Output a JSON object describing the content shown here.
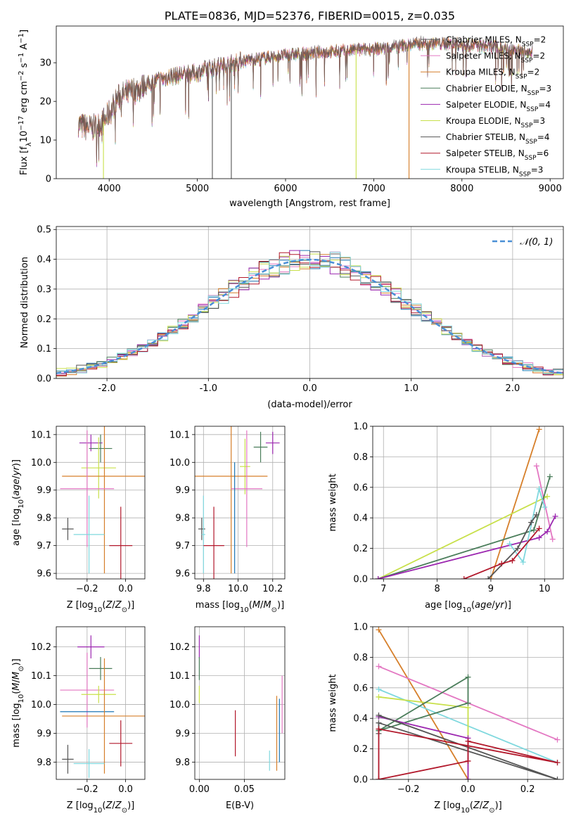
{
  "colors": {
    "chab_miles": "#1f77b4",
    "salp_miles": "#e377c2",
    "krou_miles": "#d67f2a",
    "chab_elodie": "#4a7d5a",
    "salp_elodie": "#9c27b0",
    "krou_elodie": "#c8e04a",
    "chab_stelib": "#555555",
    "salp_stelib": "#b2182b",
    "krou_stelib": "#7fd8de",
    "gaussian": "#4a8fd6",
    "grid": "#b0b0b0"
  },
  "chart_data": [
    {
      "id": "spectrum",
      "type": "line",
      "title": "PLATE=0836, MJD=52376, FIBERID=0015, z=0.035",
      "xlabel": "wavelength [Angstrom, rest frame]",
      "ylabel": "Flux [fλ10⁻¹⁷ erg cm⁻² s⁻¹ A⁻¹]",
      "xlim": [
        3400,
        9150
      ],
      "ylim": [
        0,
        39.5
      ],
      "xticks": [
        4000,
        5000,
        6000,
        7000,
        8000,
        9000
      ],
      "yticks": [
        0,
        10,
        20,
        30
      ],
      "legend_position": "right",
      "legend": [
        {
          "label": "Chabrier MILES, N",
          "sub": "SSP",
          "suffix": "=2",
          "color_key": "chab_stelib"
        },
        {
          "label": "Salpeter MILES, N",
          "sub": "SSP",
          "suffix": "=2",
          "color_key": "salp_miles"
        },
        {
          "label": "Kroupa MILES, N",
          "sub": "SSP",
          "suffix": "=2",
          "color_key": "krou_miles"
        },
        {
          "label": "Chabrier ELODIE, N",
          "sub": "SSP",
          "suffix": "=3",
          "color_key": "chab_elodie"
        },
        {
          "label": "Salpeter ELODIE, N",
          "sub": "SSP",
          "suffix": "=4",
          "color_key": "salp_elodie"
        },
        {
          "label": "Kroupa ELODIE, N",
          "sub": "SSP",
          "suffix": "=3",
          "color_key": "krou_elodie"
        },
        {
          "label": "Chabrier STELIB, N",
          "sub": "SSP",
          "suffix": "=4",
          "color_key": "chab_stelib"
        },
        {
          "label": "Salpeter STELIB, N",
          "sub": "SSP",
          "suffix": "=6",
          "color_key": "salp_stelib"
        },
        {
          "label": "Kroupa STELIB, N",
          "sub": "SSP",
          "suffix": "=3",
          "color_key": "krou_stelib"
        }
      ],
      "continuum": [
        [
          3650,
          14
        ],
        [
          3800,
          13
        ],
        [
          3950,
          15
        ],
        [
          4100,
          21
        ],
        [
          4300,
          23
        ],
        [
          4500,
          25
        ],
        [
          4700,
          26.5
        ],
        [
          5000,
          27.5
        ],
        [
          5200,
          29
        ],
        [
          5500,
          30.5
        ],
        [
          5800,
          31.5
        ],
        [
          6000,
          32
        ],
        [
          6300,
          32.5
        ],
        [
          6600,
          33
        ],
        [
          6900,
          33.5
        ],
        [
          7200,
          34
        ],
        [
          7500,
          35
        ],
        [
          7800,
          35
        ],
        [
          8100,
          34.5
        ],
        [
          8400,
          34
        ],
        [
          8700,
          33
        ],
        [
          8800,
          33
        ]
      ],
      "deep_drops": [
        [
          3935,
          0
        ],
        [
          5170,
          0
        ],
        [
          5385,
          0
        ],
        [
          6800,
          0
        ],
        [
          7400,
          0
        ]
      ]
    },
    {
      "id": "residuals",
      "type": "line",
      "xlabel": "(data-model)/error",
      "ylabel": "Normed distribution",
      "xlim": [
        -2.5,
        2.5
      ],
      "ylim": [
        0,
        0.51
      ],
      "xticks": [
        -2,
        -1,
        0,
        1,
        2
      ],
      "yticks": [
        0.0,
        0.1,
        0.2,
        0.3,
        0.4,
        0.5
      ],
      "legend_position": "top-right",
      "legend": [
        {
          "label": "𝒩(0, 1)",
          "color_key": "gaussian"
        }
      ],
      "bin_width": 0.1
    },
    {
      "id": "age_vs_Z",
      "type": "scatter",
      "xlabel": "Z [log10(Z/Z⊙)]",
      "ylabel": "age  [log10(age/yr)]",
      "xlim": [
        -0.36,
        0.1
      ],
      "ylim": [
        9.58,
        10.13
      ],
      "xticks": [
        -0.2,
        0.0
      ],
      "yticks": [
        9.6,
        9.7,
        9.8,
        9.9,
        10.0,
        10.1
      ],
      "points": [
        {
          "color_key": "salp_elodie",
          "x": -0.18,
          "y": 10.07,
          "xerr": 0.06,
          "yerr": 0.03
        },
        {
          "color_key": "chab_elodie",
          "x": -0.13,
          "y": 10.05,
          "xerr": 0.06,
          "yerr": 0.05
        },
        {
          "color_key": "krou_elodie",
          "x": -0.14,
          "y": 9.98,
          "xerr": 0.09,
          "yerr": 0.11
        },
        {
          "color_key": "krou_miles",
          "x": -0.11,
          "y": 9.95,
          "xerr": 0.22,
          "yerr": 0.35
        },
        {
          "color_key": "salp_miles",
          "x": -0.2,
          "y": 9.905,
          "xerr": 0.14,
          "yerr": 0.21
        },
        {
          "color_key": "krou_stelib",
          "x": -0.19,
          "y": 9.74,
          "xerr": 0.08,
          "yerr": 0.14
        },
        {
          "color_key": "chab_stelib",
          "x": -0.3,
          "y": 9.76,
          "xerr": 0.03,
          "yerr": 0.04
        },
        {
          "color_key": "salp_stelib",
          "x": -0.025,
          "y": 9.7,
          "xerr": 0.06,
          "yerr": 0.14
        }
      ]
    },
    {
      "id": "age_vs_mass",
      "type": "scatter",
      "xlabel": "mass [log10(M/M⊙)]",
      "ylim": [
        9.58,
        10.13
      ],
      "xlim": [
        9.75,
        10.27
      ],
      "xticks": [
        9.8,
        10.0,
        10.2
      ],
      "yticks": [
        9.6,
        9.7,
        9.8,
        9.9,
        10.0,
        10.1
      ],
      "points": [
        {
          "color_key": "salp_elodie",
          "x": 10.2,
          "y": 10.07,
          "xerr": 0.04,
          "yerr": 0.04
        },
        {
          "color_key": "chab_elodie",
          "x": 10.13,
          "y": 10.055,
          "xerr": 0.04,
          "yerr": 0.055
        },
        {
          "color_key": "krou_elodie",
          "x": 10.04,
          "y": 9.985,
          "xerr": 0.03,
          "yerr": 0.1
        },
        {
          "color_key": "krou_miles",
          "x": 9.96,
          "y": 9.95,
          "xerr": 0.21,
          "yerr": 0.35
        },
        {
          "color_key": "salp_miles",
          "x": 10.05,
          "y": 9.905,
          "xerr": 0.09,
          "yerr": 0.21
        },
        {
          "color_key": "chab_stelib",
          "x": 9.79,
          "y": 9.76,
          "xerr": 0.02,
          "yerr": 0.04
        },
        {
          "color_key": "krou_stelib",
          "x": 9.8,
          "y": 9.74,
          "xerr": 0.01,
          "yerr": 0.14
        },
        {
          "color_key": "salp_stelib",
          "x": 9.86,
          "y": 9.7,
          "xerr": 0.06,
          "yerr": 0.14
        },
        {
          "color_key": "chab_miles",
          "x": 9.98,
          "y": 9.8,
          "xerr": 0.0,
          "yerr": 0.2
        }
      ]
    },
    {
      "id": "weight_vs_age",
      "type": "line",
      "xlabel": "age  [log10(age/yr)]",
      "ylabel": "mass weight",
      "xlim": [
        6.8,
        10.35
      ],
      "ylim": [
        0,
        1
      ],
      "xticks": [
        7,
        8,
        9,
        10
      ],
      "yticks": [
        0.0,
        0.2,
        0.4,
        0.6,
        0.8,
        1.0
      ],
      "series": [
        {
          "color_key": "krou_miles",
          "x": [
            9.0,
            9.9
          ],
          "y": [
            0.0,
            0.98
          ]
        },
        {
          "color_key": "salp_miles",
          "x": [
            9.85,
            10.15
          ],
          "y": [
            0.74,
            0.26
          ]
        },
        {
          "color_key": "krou_elodie",
          "x": [
            6.9,
            10.05
          ],
          "y": [
            0.0,
            0.54
          ]
        },
        {
          "color_key": "chab_elodie",
          "x": [
            6.9,
            9.8,
            10.1
          ],
          "y": [
            0.0,
            0.32,
            0.67
          ]
        },
        {
          "color_key": "salp_elodie",
          "x": [
            6.9,
            9.9,
            10.05,
            10.2
          ],
          "y": [
            0.0,
            0.27,
            0.31,
            0.41
          ]
        },
        {
          "color_key": "krou_stelib",
          "x": [
            9.35,
            9.6,
            9.9,
            10.0
          ],
          "y": [
            0.23,
            0.11,
            0.59,
            0.47
          ]
        },
        {
          "color_key": "chab_stelib",
          "x": [
            8.95,
            9.5,
            9.75,
            9.85
          ],
          "y": [
            0.0,
            0.2,
            0.37,
            0.42
          ]
        },
        {
          "color_key": "salp_stelib",
          "x": [
            8.5,
            9.2,
            9.4,
            9.9
          ],
          "y": [
            0.0,
            0.1,
            0.12,
            0.33
          ]
        }
      ]
    },
    {
      "id": "mass_vs_Z",
      "type": "scatter",
      "xlabel": "Z [log10(Z/Z⊙)]",
      "ylabel": "mass [log10(M/M⊙)]",
      "xlim": [
        -0.36,
        0.1
      ],
      "ylim": [
        9.74,
        10.27
      ],
      "xticks": [
        -0.2,
        0.0
      ],
      "yticks": [
        9.8,
        9.9,
        10.0,
        10.1,
        10.2
      ],
      "points": [
        {
          "color_key": "salp_elodie",
          "x": -0.18,
          "y": 10.2,
          "xerr": 0.07,
          "yerr": 0.04
        },
        {
          "color_key": "chab_elodie",
          "x": -0.13,
          "y": 10.125,
          "xerr": 0.06,
          "yerr": 0.04
        },
        {
          "color_key": "salp_miles",
          "x": -0.2,
          "y": 10.05,
          "xerr": 0.14,
          "yerr": 0.13
        },
        {
          "color_key": "krou_elodie",
          "x": -0.14,
          "y": 10.035,
          "xerr": 0.09,
          "yerr": 0.03
        },
        {
          "color_key": "chab_miles",
          "x": -0.2,
          "y": 9.975,
          "xerr": 0.14,
          "yerr": 0.0
        },
        {
          "color_key": "krou_miles",
          "x": -0.11,
          "y": 9.96,
          "xerr": 0.22,
          "yerr": 0.2
        },
        {
          "color_key": "salp_stelib",
          "x": -0.025,
          "y": 9.865,
          "xerr": 0.06,
          "yerr": 0.08
        },
        {
          "color_key": "chab_stelib",
          "x": -0.3,
          "y": 9.81,
          "xerr": 0.03,
          "yerr": 0.05
        },
        {
          "color_key": "krou_stelib",
          "x": -0.19,
          "y": 9.795,
          "xerr": 0.08,
          "yerr": 0.05
        }
      ]
    },
    {
      "id": "mass_vs_ebv",
      "type": "scatter",
      "xlabel": "E(B-V)",
      "xlim": [
        -0.005,
        0.095
      ],
      "ylim": [
        9.74,
        10.27
      ],
      "xticks": [
        0.0,
        0.05
      ],
      "yticks": [
        9.8,
        9.9,
        10.0,
        10.1,
        10.2
      ],
      "points": [
        {
          "color_key": "salp_elodie",
          "x": 0.0,
          "y": 10.2,
          "xerr": 0.0,
          "yerr": 0.04
        },
        {
          "color_key": "chab_elodie",
          "x": 0.0,
          "y": 10.125,
          "xerr": 0.0,
          "yerr": 0.04
        },
        {
          "color_key": "krou_elodie",
          "x": 0.0,
          "y": 10.035,
          "xerr": 0.0,
          "yerr": 0.03
        },
        {
          "color_key": "salp_stelib",
          "x": 0.04,
          "y": 9.9,
          "xerr": 0.0,
          "yerr": 0.08
        },
        {
          "color_key": "krou_stelib",
          "x": 0.078,
          "y": 9.805,
          "xerr": 0.0,
          "yerr": 0.035
        },
        {
          "color_key": "krou_miles",
          "x": 0.086,
          "y": 9.9,
          "xerr": 0.0,
          "yerr": 0.13
        },
        {
          "color_key": "chab_miles",
          "x": 0.089,
          "y": 9.91,
          "xerr": 0.0,
          "yerr": 0.11
        },
        {
          "color_key": "salp_miles",
          "x": 0.092,
          "y": 10.0,
          "xerr": 0.0,
          "yerr": 0.1
        }
      ]
    },
    {
      "id": "weight_vs_Z",
      "type": "line",
      "xlabel": "Z [log10(Z/Z⊙)]",
      "ylabel": "mass weight",
      "xlim": [
        -0.32,
        0.32
      ],
      "ylim": [
        0,
        1
      ],
      "xticks": [
        -0.2,
        0.0,
        0.2
      ],
      "yticks": [
        0.0,
        0.2,
        0.4,
        0.6,
        0.8,
        1.0
      ],
      "series": [
        {
          "color_key": "krou_miles",
          "x": [
            -0.3,
            0.0
          ],
          "y": [
            0.98,
            0.0
          ]
        },
        {
          "color_key": "salp_miles",
          "x": [
            -0.3,
            0.3
          ],
          "y": [
            0.74,
            0.26
          ]
        },
        {
          "color_key": "krou_stelib",
          "x": [
            -0.3,
            0.3
          ],
          "y": [
            0.59,
            0.11
          ]
        },
        {
          "color_key": "krou_elodie",
          "x": [
            -0.3,
            0.0,
            0.0
          ],
          "y": [
            0.54,
            0.47,
            0.0
          ]
        },
        {
          "color_key": "chab_elodie",
          "x": [
            -0.3,
            0.0,
            0.0,
            -0.3
          ],
          "y": [
            0.32,
            0.67,
            0.5,
            0.32
          ]
        },
        {
          "color_key": "salp_elodie",
          "x": [
            -0.3,
            0.0,
            0.0
          ],
          "y": [
            0.41,
            0.27,
            0.0
          ]
        },
        {
          "color_key": "chab_stelib",
          "x": [
            -0.3,
            0.3,
            -0.3,
            -0.3
          ],
          "y": [
            0.42,
            0.0,
            0.37,
            0.3
          ]
        },
        {
          "color_key": "salp_stelib",
          "x": [
            -0.3,
            0.0,
            0.0,
            0.3,
            -0.3,
            -0.3
          ],
          "y": [
            0.0,
            0.12,
            0.25,
            0.11,
            0.33,
            0.0
          ]
        }
      ]
    }
  ]
}
